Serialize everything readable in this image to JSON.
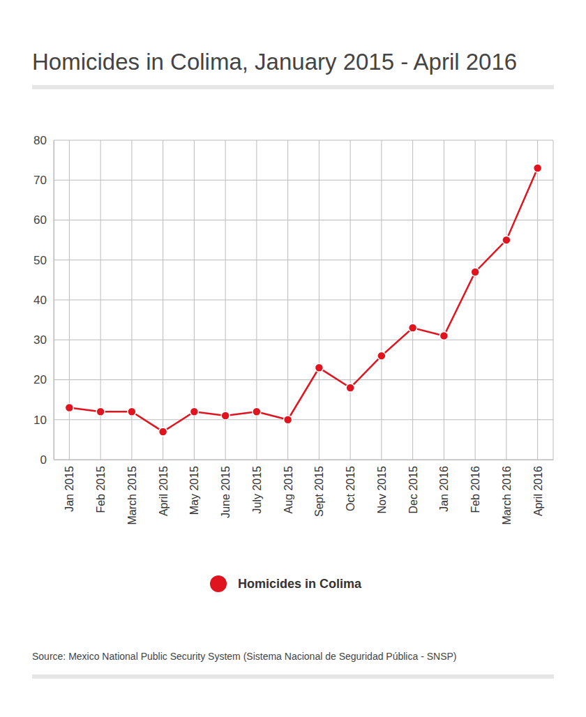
{
  "chart_data": {
    "type": "line",
    "title": "Homicides in Colima, January 2015 - April 2016",
    "categories": [
      "Jan 2015",
      "Feb 2015",
      "March 2015",
      "April 2015",
      "May 2015",
      "June 2015",
      "July 2015",
      "Aug 2015",
      "Sept 2015",
      "Oct 2015",
      "Nov 2015",
      "Dec 2015",
      "Jan 2016",
      "Feb 2016",
      "March 2016",
      "April 2016"
    ],
    "series": [
      {
        "name": "Homicides in Colima",
        "color": "#e0141e",
        "values": [
          13,
          12,
          12,
          7,
          12,
          11,
          12,
          10,
          23,
          18,
          26,
          33,
          31,
          47,
          55,
          73
        ]
      }
    ],
    "ylim": [
      0,
      80
    ],
    "yticks": [
      0,
      10,
      20,
      30,
      40,
      50,
      60,
      70,
      80
    ],
    "grid": true,
    "legend": "bottom",
    "marker": "circle",
    "source": "Source: Mexico National Public Security System (Sistema Nacional de Seguridad Pública - SNSP)"
  }
}
